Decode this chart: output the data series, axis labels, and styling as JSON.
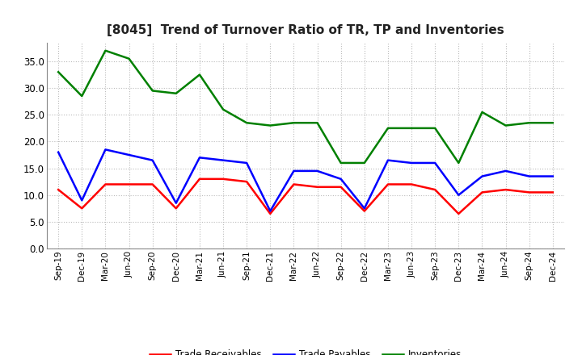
{
  "title": "[8045]  Trend of Turnover Ratio of TR, TP and Inventories",
  "x_labels": [
    "Sep-19",
    "Dec-19",
    "Mar-20",
    "Jun-20",
    "Sep-20",
    "Dec-20",
    "Mar-21",
    "Jun-21",
    "Sep-21",
    "Dec-21",
    "Mar-22",
    "Jun-22",
    "Sep-22",
    "Dec-22",
    "Mar-23",
    "Jun-23",
    "Sep-23",
    "Dec-23",
    "Mar-24",
    "Jun-24",
    "Sep-24",
    "Dec-24"
  ],
  "trade_receivables": [
    11.0,
    7.5,
    12.0,
    12.0,
    12.0,
    7.5,
    13.0,
    13.0,
    12.5,
    6.5,
    12.0,
    11.5,
    11.5,
    7.0,
    12.0,
    12.0,
    11.0,
    6.5,
    10.5,
    11.0,
    10.5,
    10.5
  ],
  "trade_payables": [
    18.0,
    9.0,
    18.5,
    17.5,
    16.5,
    8.5,
    17.0,
    16.5,
    16.0,
    7.0,
    14.5,
    14.5,
    13.0,
    7.5,
    16.5,
    16.0,
    16.0,
    10.0,
    13.5,
    14.5,
    13.5,
    13.5
  ],
  "inventories": [
    33.0,
    28.5,
    37.0,
    35.5,
    29.5,
    29.0,
    32.5,
    26.0,
    23.5,
    23.0,
    23.5,
    23.5,
    16.0,
    16.0,
    22.5,
    22.5,
    22.5,
    16.0,
    25.5,
    23.0,
    23.5,
    23.5
  ],
  "ylim": [
    0.0,
    38.5
  ],
  "yticks": [
    0.0,
    5.0,
    10.0,
    15.0,
    20.0,
    25.0,
    30.0,
    35.0
  ],
  "color_tr": "#ff0000",
  "color_tp": "#0000ff",
  "color_inv": "#008000",
  "line_width": 1.8,
  "background_color": "#ffffff",
  "plot_background": "#ffffff",
  "grid_color": "#bbbbbb",
  "legend_labels": [
    "Trade Receivables",
    "Trade Payables",
    "Inventories"
  ]
}
